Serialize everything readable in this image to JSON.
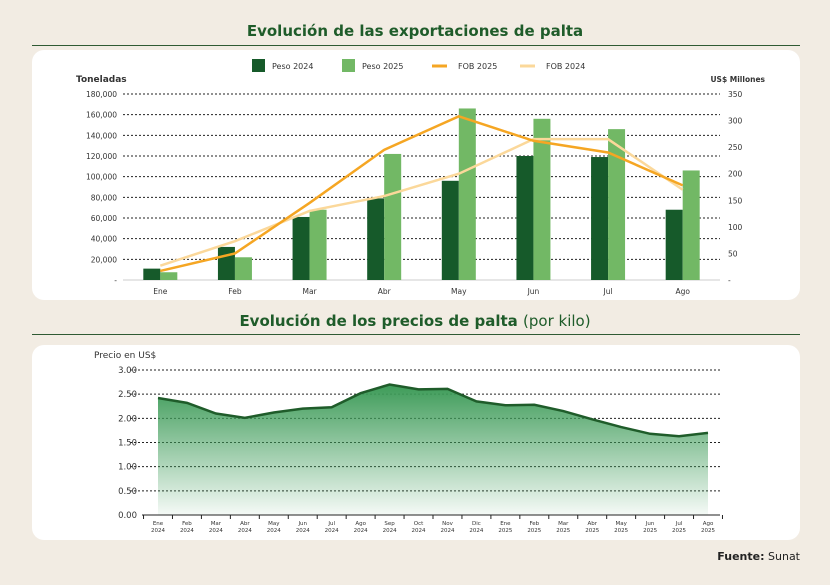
{
  "chart_data": [
    {
      "type": "bar",
      "title": "Evolución de las exportaciones de palta",
      "categories": [
        "Ene",
        "Feb",
        "Mar",
        "Abr",
        "May",
        "Jun",
        "Jul",
        "Ago"
      ],
      "ylabel": "Toneladas",
      "ylabel_right": "US$ Millones",
      "ylim": [
        0,
        180000
      ],
      "ylim_right": [
        0,
        350
      ],
      "yticks": [
        "-",
        "20,000",
        "40,000",
        "60,000",
        "80,000",
        "100,000",
        "120,000",
        "140,000",
        "160,000",
        "180,000"
      ],
      "yticks_right": [
        "-",
        "50",
        "100",
        "150",
        "200",
        "250",
        "300",
        "350"
      ],
      "legend": "top",
      "grid": true,
      "series": [
        {
          "name": "Peso 2024",
          "type": "bar",
          "axis": "left",
          "color": "#165a2a",
          "values": [
            11000,
            32000,
            61000,
            79000,
            96000,
            120000,
            119000,
            68000
          ]
        },
        {
          "name": "Peso 2025",
          "type": "bar",
          "axis": "left",
          "color": "#72b865",
          "values": [
            7500,
            22000,
            68000,
            122000,
            166000,
            156000,
            146000,
            106000
          ]
        },
        {
          "name": "FOB 2025",
          "type": "line",
          "axis": "right",
          "color": "#f5a623",
          "values": [
            17,
            50,
            145,
            245,
            308,
            262,
            240,
            178
          ]
        },
        {
          "name": "FOB 2024",
          "type": "line",
          "axis": "right",
          "color": "#fbd89a",
          "values": [
            27,
            73,
            130,
            158,
            200,
            265,
            265,
            170
          ]
        }
      ]
    },
    {
      "type": "area",
      "title": "Evolución de los precios de palta",
      "title_suffix": "(por kilo)",
      "ylabel": "Precio en US$",
      "ylim": [
        0,
        3
      ],
      "grid": true,
      "yticks": [
        "0.00",
        "0.50",
        "1.00",
        "1.50",
        "2.00",
        "2.50",
        "3.00"
      ],
      "categories": [
        [
          "Ene",
          "2024"
        ],
        [
          "Feb",
          "2024"
        ],
        [
          "Mar",
          "2024"
        ],
        [
          "Abr",
          "2024"
        ],
        [
          "May",
          "2024"
        ],
        [
          "Jun",
          "2024"
        ],
        [
          "Jul",
          "2024"
        ],
        [
          "Ago",
          "2024"
        ],
        [
          "Sep",
          "2024"
        ],
        [
          "Oct",
          "2024"
        ],
        [
          "Nov",
          "2024"
        ],
        [
          "Dic",
          "2024"
        ],
        [
          "Ene",
          "2025"
        ],
        [
          "Feb",
          "2025"
        ],
        [
          "Mar",
          "2025"
        ],
        [
          "Abr",
          "2025"
        ],
        [
          "May",
          "2025"
        ],
        [
          "Jun",
          "2025"
        ],
        [
          "Jul",
          "2025"
        ],
        [
          "Ago",
          "2025"
        ]
      ],
      "values": [
        2.42,
        2.32,
        2.1,
        2.01,
        2.12,
        2.2,
        2.23,
        2.52,
        2.7,
        2.6,
        2.61,
        2.35,
        2.27,
        2.28,
        2.15,
        1.98,
        1.82,
        1.68,
        1.63,
        1.7
      ],
      "color": "#1f5c2a"
    }
  ],
  "source": {
    "label": "Fuente:",
    "value": "Sunat"
  }
}
